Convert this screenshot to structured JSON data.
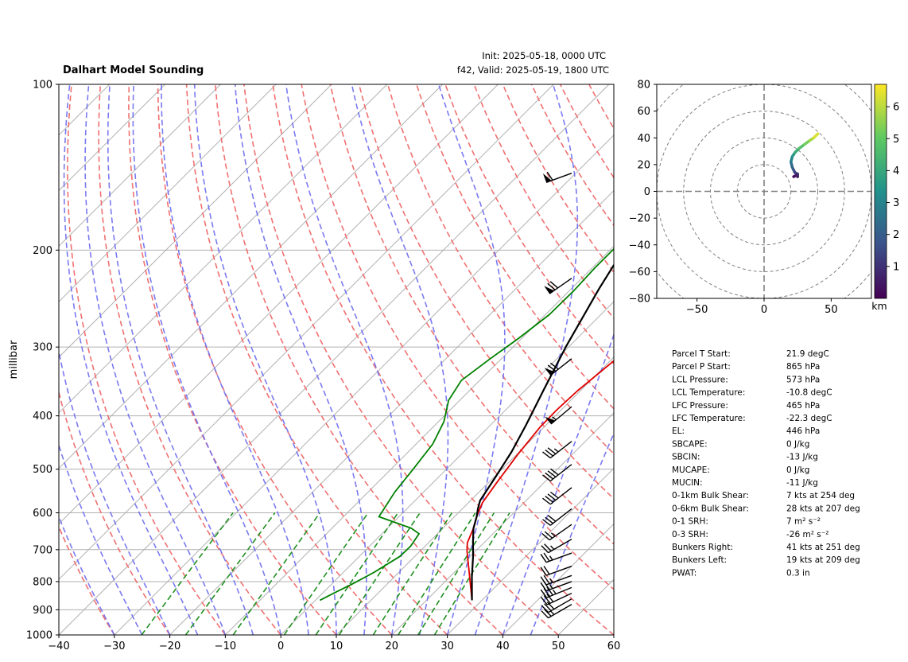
{
  "header": {
    "title": "Dalhart Model Sounding",
    "init": "Init: 2025-05-18, 0000 UTC",
    "valid": "f42, Valid: 2025-05-19, 1800 UTC"
  },
  "chart_data": [
    {
      "type": "line",
      "name": "skew-t",
      "ylabel": "millibar",
      "xlabel": "",
      "xlim": [
        -40,
        60
      ],
      "ylim": [
        1000,
        100
      ],
      "y_scale": "log",
      "x_ticks": [
        -40,
        -30,
        -20,
        -10,
        0,
        10,
        20,
        30,
        40,
        50,
        60
      ],
      "y_ticks": [
        100,
        200,
        300,
        400,
        500,
        600,
        700,
        800,
        900,
        1000
      ],
      "grid": true,
      "series": [
        {
          "color": "#e00000",
          "points": [
            [
              28.2,
              865
            ],
            [
              23,
              775
            ],
            [
              18.5,
              705
            ],
            [
              17,
              680
            ],
            [
              15.5,
              640
            ],
            [
              14,
              610
            ],
            [
              12.5,
              575
            ],
            [
              11.5,
              530
            ],
            [
              10.2,
              470
            ],
            [
              9.3,
              420
            ],
            [
              9.2,
              390
            ],
            [
              9.5,
              360
            ],
            [
              10.3,
              330
            ],
            [
              11.2,
              300
            ],
            [
              12.5,
              268
            ],
            [
              17.8,
              235
            ],
            [
              23,
              210
            ],
            [
              28.5,
              185
            ],
            [
              34,
              162
            ],
            [
              39,
              147
            ],
            [
              45,
              135
            ],
            [
              48,
              125
            ],
            [
              53,
              117
            ]
          ]
        },
        {
          "color": "#008000",
          "points": [
            [
              0.8,
              865
            ],
            [
              2,
              840
            ],
            [
              3.6,
              810
            ],
            [
              5.5,
              770
            ],
            [
              7.3,
              720
            ],
            [
              7.4,
              690
            ],
            [
              6.7,
              655
            ],
            [
              4.3,
              640
            ],
            [
              -3.6,
              610
            ],
            [
              -5.2,
              550
            ],
            [
              -6,
              500
            ],
            [
              -7,
              450
            ],
            [
              -9,
              410
            ],
            [
              -12,
              375
            ],
            [
              -13.3,
              345
            ],
            [
              -12,
              315
            ],
            [
              -10.6,
              290
            ],
            [
              -9.3,
              262
            ],
            [
              -9.2,
              237
            ],
            [
              -9.5,
              215
            ],
            [
              -9.5,
              190
            ],
            [
              -7.3,
              162
            ],
            [
              -4.5,
              145
            ],
            [
              -1,
              133
            ],
            [
              2.3,
              124
            ],
            [
              5.6,
              116
            ],
            [
              8.5,
              110
            ],
            [
              11,
              104
            ],
            [
              13.5,
              100
            ]
          ]
        },
        {
          "color": "#000000",
          "points": [
            [
              28.2,
              865
            ],
            [
              24,
              785
            ],
            [
              20.5,
              720
            ],
            [
              17.7,
              675
            ],
            [
              15.5,
              640
            ],
            [
              14,
              610
            ],
            [
              12.8,
              590
            ],
            [
              11.7,
              570
            ],
            [
              10.2,
              515
            ],
            [
              8.6,
              465
            ],
            [
              6.4,
              416
            ],
            [
              3.3,
              360
            ],
            [
              -0.5,
              300
            ],
            [
              -5,
              235
            ],
            [
              -9.5,
              178
            ],
            [
              -13.5,
              140
            ],
            [
              -17.5,
              110
            ],
            [
              -18,
              102
            ]
          ]
        }
      ],
      "wind_barbs": [
        {
          "p": 880,
          "speed_kt": 25,
          "dir_deg": 240
        },
        {
          "p": 860,
          "speed_kt": 30,
          "dir_deg": 240
        },
        {
          "p": 840,
          "speed_kt": 30,
          "dir_deg": 245
        },
        {
          "p": 820,
          "speed_kt": 35,
          "dir_deg": 248
        },
        {
          "p": 800,
          "speed_kt": 25,
          "dir_deg": 250
        },
        {
          "p": 780,
          "speed_kt": 25,
          "dir_deg": 250
        },
        {
          "p": 750,
          "speed_kt": 20,
          "dir_deg": 250
        },
        {
          "p": 710,
          "speed_kt": 25,
          "dir_deg": 250
        },
        {
          "p": 670,
          "speed_kt": 25,
          "dir_deg": 240
        },
        {
          "p": 630,
          "speed_kt": 25,
          "dir_deg": 235
        },
        {
          "p": 590,
          "speed_kt": 30,
          "dir_deg": 232
        },
        {
          "p": 540,
          "speed_kt": 40,
          "dir_deg": 232
        },
        {
          "p": 490,
          "speed_kt": 40,
          "dir_deg": 232
        },
        {
          "p": 445,
          "speed_kt": 35,
          "dir_deg": 232
        },
        {
          "p": 385,
          "speed_kt": 55,
          "dir_deg": 230
        },
        {
          "p": 315,
          "speed_kt": 70,
          "dir_deg": 232
        },
        {
          "p": 225,
          "speed_kt": 70,
          "dir_deg": 235
        },
        {
          "p": 145,
          "speed_kt": 60,
          "dir_deg": 250
        }
      ]
    },
    {
      "type": "line",
      "name": "hodograph",
      "xlim": [
        -80,
        80
      ],
      "ylim": [
        -80,
        80
      ],
      "x_ticks": [
        -50,
        0,
        50
      ],
      "y_ticks": [
        -80,
        -60,
        -40,
        -20,
        0,
        20,
        40,
        60,
        80
      ],
      "rings": [
        20,
        40,
        60,
        80,
        100
      ],
      "colorbar": {
        "label": "km",
        "ticks": [
          1,
          2,
          3,
          4,
          5,
          6
        ],
        "range": [
          0,
          6.7
        ]
      },
      "points": [
        [
          22,
          11
        ],
        [
          24,
          12
        ],
        [
          25,
          11
        ],
        [
          25,
          13
        ],
        [
          23,
          14
        ],
        [
          22,
          16
        ],
        [
          21,
          18
        ],
        [
          20,
          22
        ],
        [
          21,
          26
        ],
        [
          23,
          29
        ],
        [
          26,
          32
        ],
        [
          30,
          35
        ],
        [
          34,
          38
        ],
        [
          37,
          40
        ],
        [
          40,
          43
        ]
      ],
      "heights_km": [
        0.1,
        0.3,
        0.5,
        0.8,
        1.1,
        1.5,
        2.0,
        2.6,
        3.2,
        3.8,
        4.4,
        5.0,
        5.5,
        6.0,
        6.6
      ]
    }
  ],
  "stats": [
    {
      "label": "Parcel T Start:",
      "value": "21.9 degC"
    },
    {
      "label": "Parcel P Start:",
      "value": "865 hPa"
    },
    {
      "label": "LCL Pressure:",
      "value": "573 hPa"
    },
    {
      "label": "LCL Temperature:",
      "value": "-10.8 degC"
    },
    {
      "label": "LFC Pressure:",
      "value": "465 hPa"
    },
    {
      "label": "LFC Temperature:",
      "value": "-22.3 degC"
    },
    {
      "label": "EL:",
      "value": "446 hPa"
    },
    {
      "label": "SBCAPE:",
      "value": "0 J/kg"
    },
    {
      "label": "SBCIN:",
      "value": "-13 J/kg"
    },
    {
      "label": "MUCAPE:",
      "value": "0 J/kg"
    },
    {
      "label": "MUCIN:",
      "value": "-11 J/kg"
    },
    {
      "label": "0-1km Bulk Shear:",
      "value": "7 kts at 254 deg"
    },
    {
      "label": "0-6km Bulk Shear:",
      "value": "28 kts at 207 deg"
    },
    {
      "label": "0-1 SRH:",
      "value": "7 m² s⁻²"
    },
    {
      "label": "0-3 SRH:",
      "value": "-26 m² s⁻²"
    },
    {
      "label": "Bunkers Right:",
      "value": "41 kts at 251 deg"
    },
    {
      "label": "Bunkers Left:",
      "value": "19 kts at 209 deg"
    },
    {
      "label": "PWAT:",
      "value": "0.3 in"
    }
  ]
}
